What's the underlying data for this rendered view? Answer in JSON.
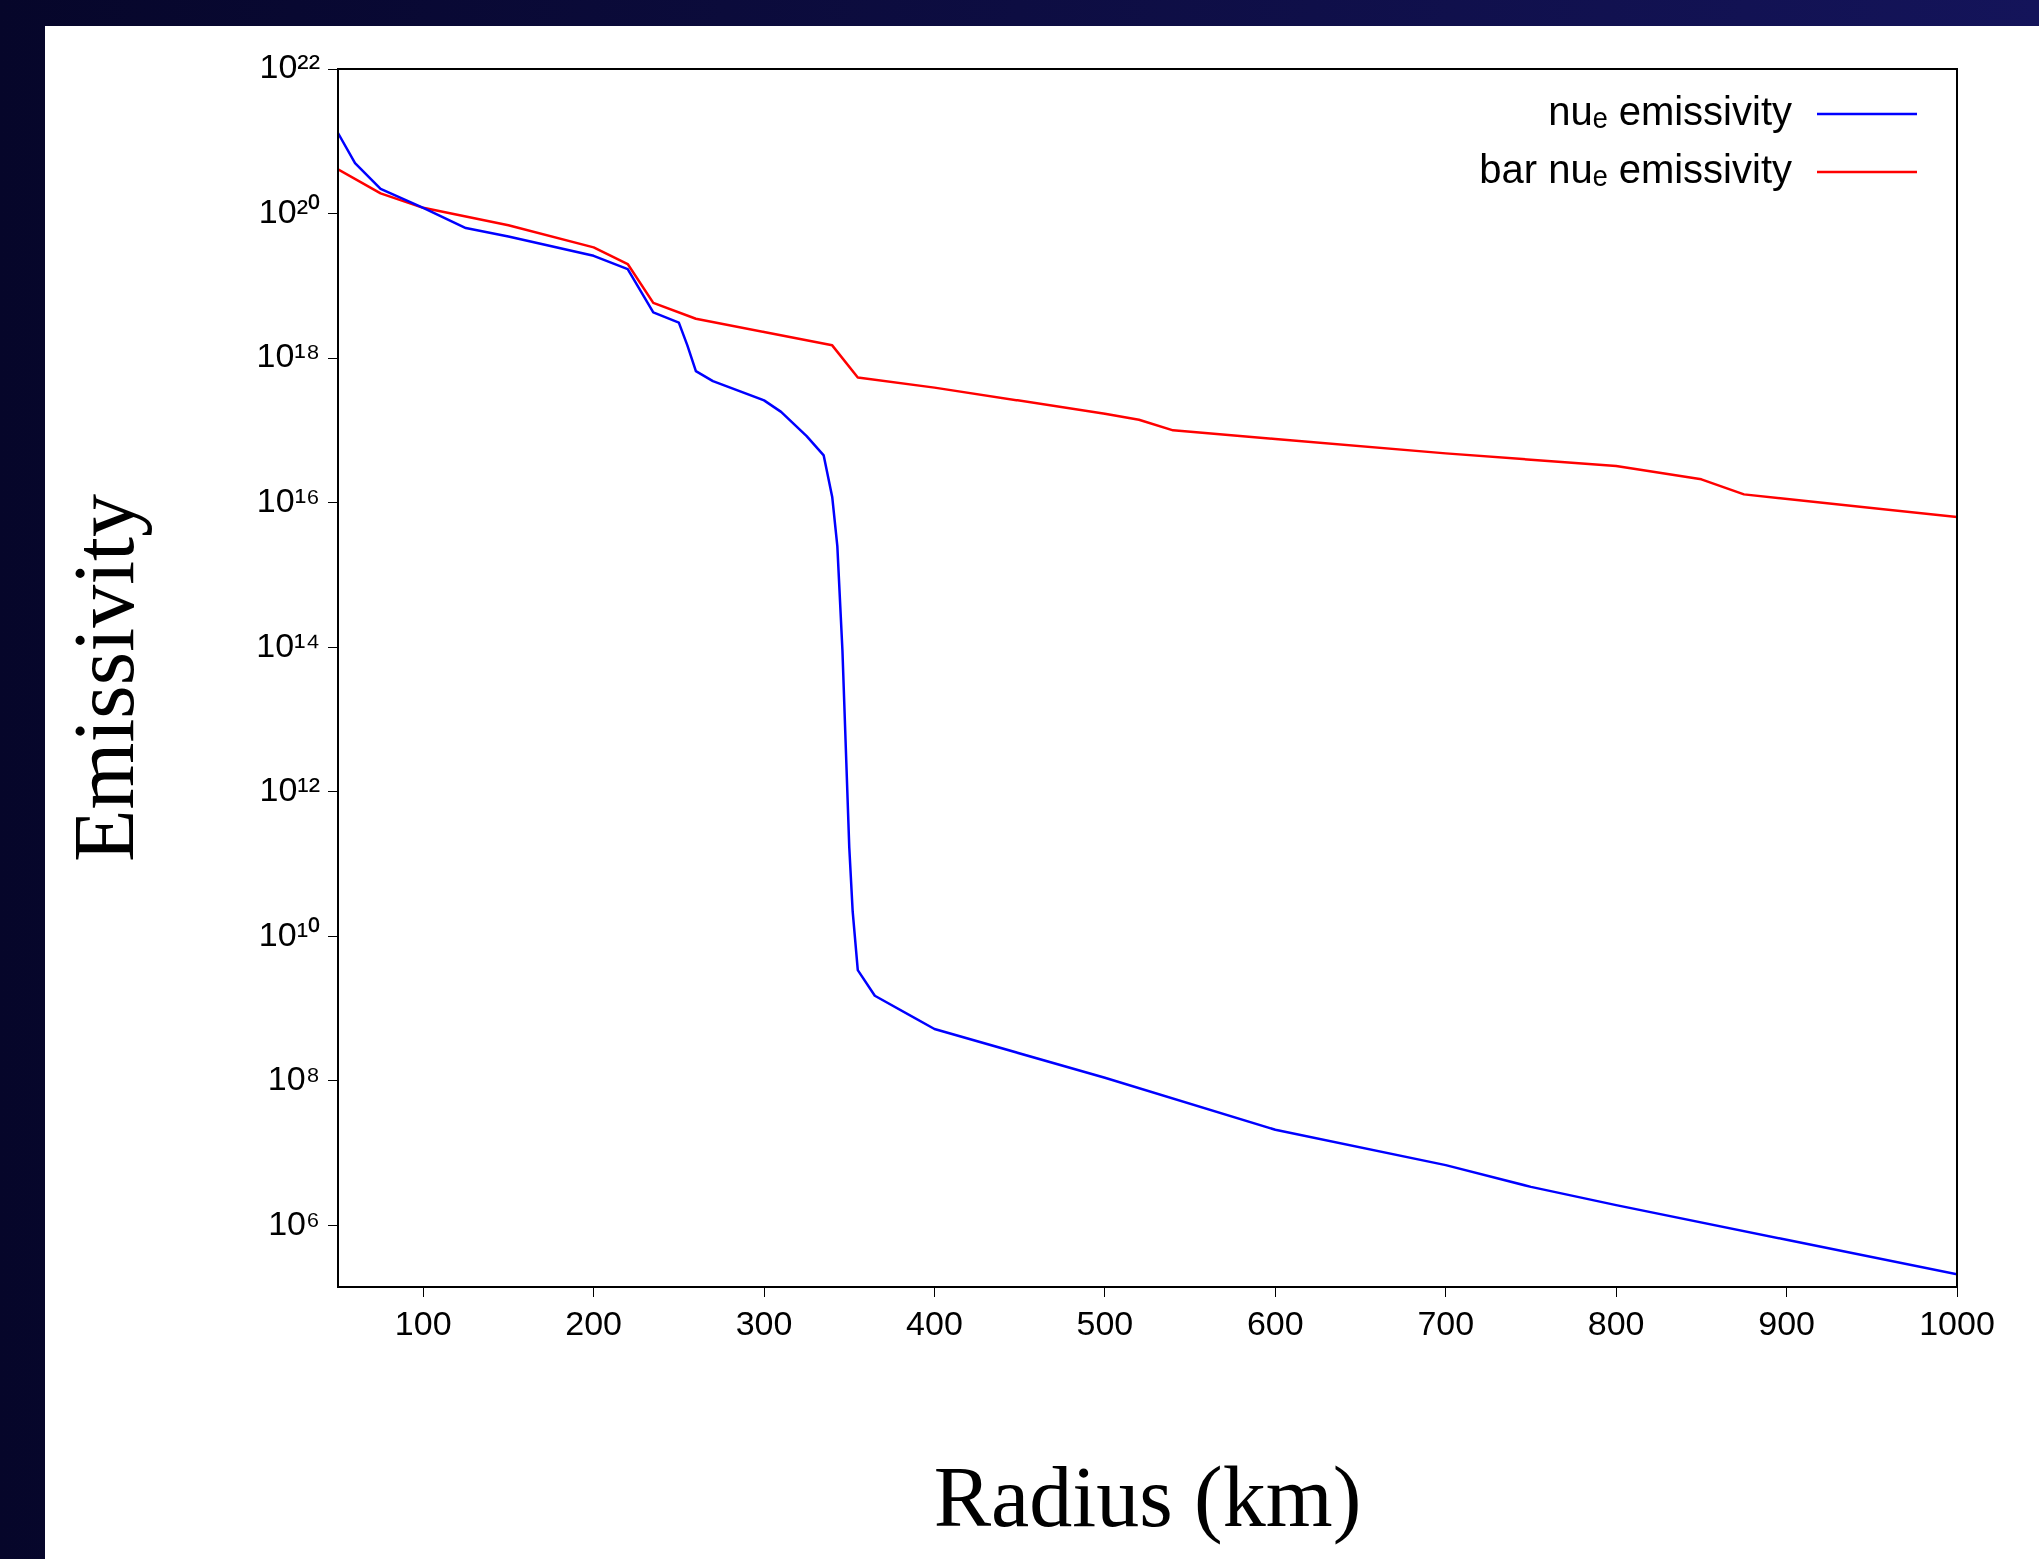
{
  "chart_data": {
    "type": "line",
    "xlabel": "Radius (km)",
    "ylabel": "Emissivity",
    "log": "y",
    "grid": false,
    "legend": "top right",
    "marker": "none",
    "line_style": "solid",
    "xlim": [
      50,
      1000
    ],
    "xticks": [
      100,
      200,
      300,
      400,
      500,
      600,
      700,
      800,
      900,
      1000
    ],
    "ylim": [
      140000.0,
      1e+22
    ],
    "yticks": [
      {
        "value": 1000000.0,
        "label": "10⁶"
      },
      {
        "value": 100000000.0,
        "label": "10⁸"
      },
      {
        "value": 10000000000.0,
        "label": "10¹⁰"
      },
      {
        "value": 1000000000000.0,
        "label": "10¹²"
      },
      {
        "value": 100000000000000.0,
        "label": "10¹⁴"
      },
      {
        "value": 1e+16,
        "label": "10¹⁶"
      },
      {
        "value": 1e+18,
        "label": "10¹⁸"
      },
      {
        "value": 1e+20,
        "label": "10²⁰"
      },
      {
        "value": 1e+22,
        "label": "10²²"
      }
    ],
    "series": [
      {
        "name": "nuₑ emissivity",
        "color": "#0000ff",
        "x": [
          50,
          60,
          75,
          100,
          125,
          150,
          200,
          220,
          235,
          250,
          255,
          260,
          270,
          300,
          310,
          325,
          335,
          340,
          343,
          346,
          350,
          352,
          355,
          365,
          400,
          500,
          600,
          700,
          750,
          800,
          900,
          1000
        ],
        "values": [
          1.3e+21,
          5e+20,
          2.2e+20,
          1.2e+20,
          6.3e+19,
          4.8e+19,
          2.6e+19,
          1.7e+19,
          4.3e+18,
          3.1e+18,
          1.5e+18,
          6.6e+17,
          4.8e+17,
          2.6e+17,
          1.8e+17,
          8.3e+16,
          4.5e+16,
          1.2e+16,
          2500000000000000.0,
          89000000000000.0,
          170000000000.0,
          22000000000.0,
          3400000000.0,
          1500000000.0,
          520000000.0,
          110000000.0,
          21000000.0,
          6800000.0,
          3400000.0,
          1900000.0,
          630000.0,
          210000.0
        ]
      },
      {
        "name": "bar nuₑ emissivity",
        "color": "#ff0000",
        "x": [
          50,
          75,
          100,
          150,
          200,
          220,
          235,
          260,
          300,
          340,
          355,
          400,
          500,
          520,
          540,
          600,
          700,
          800,
          850,
          875,
          1000
        ],
        "values": [
          4.1e+20,
          1.9e+20,
          1.2e+20,
          6.9e+19,
          3.4e+19,
          2e+19,
          5.8e+18,
          3.5e+18,
          2.3e+18,
          1.5e+18,
          5.4e+17,
          3.9e+17,
          1.7e+17,
          1.4e+17,
          1e+17,
          7.6e+16,
          4.8e+16,
          3.2e+16,
          2.1e+16,
          1.3e+16,
          6300000000000000.0
        ]
      }
    ]
  }
}
